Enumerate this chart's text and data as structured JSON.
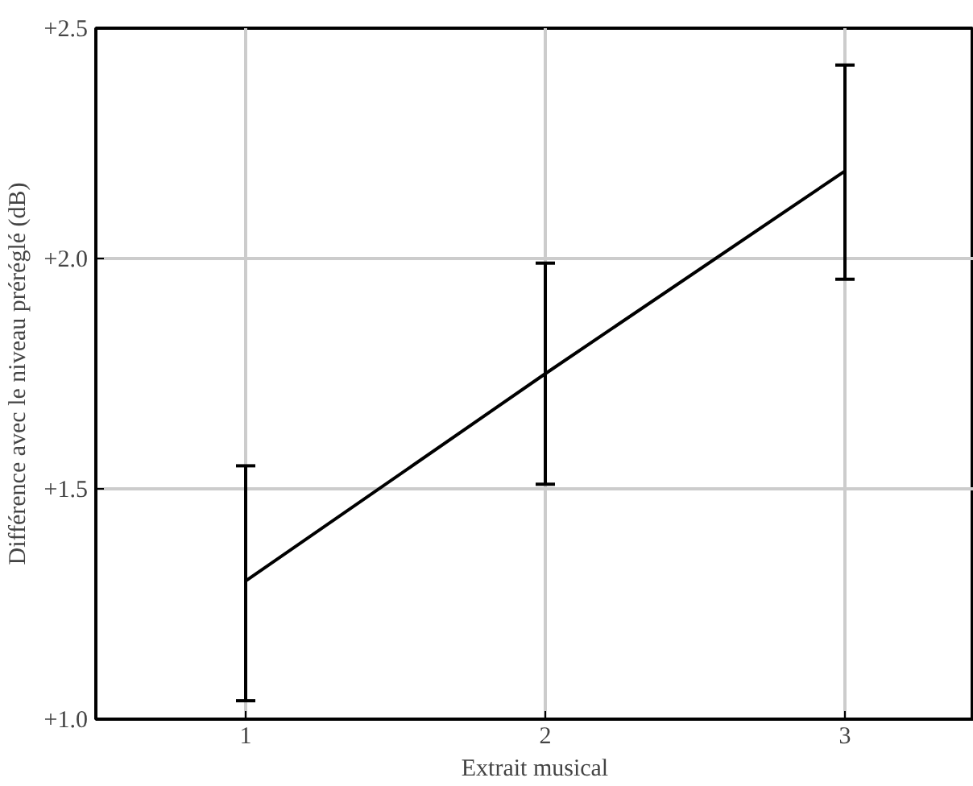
{
  "chart_data": {
    "type": "line",
    "xlabel": "Extrait musical",
    "ylabel": "Différence avec le niveau préréglé (dB)",
    "x": [
      1,
      2,
      3
    ],
    "values": [
      1.3,
      1.75,
      2.19
    ],
    "errors": [
      [
        1.04,
        1.55
      ],
      [
        1.51,
        1.99
      ],
      [
        1.955,
        2.42
      ]
    ],
    "color": "#000000",
    "xlim": [
      0.5,
      3.43
    ],
    "xticks": [
      1,
      2,
      3
    ],
    "ylim": [
      1.0,
      2.5
    ],
    "yticks": [
      {
        "value": 1.0,
        "label": "+1.0"
      },
      {
        "value": 1.5,
        "label": "+1.5"
      },
      {
        "value": 2.0,
        "label": "+2.0"
      },
      {
        "value": 2.5,
        "label": "+2.5"
      }
    ],
    "grid": true,
    "marker": "none",
    "line_style": "solid"
  }
}
